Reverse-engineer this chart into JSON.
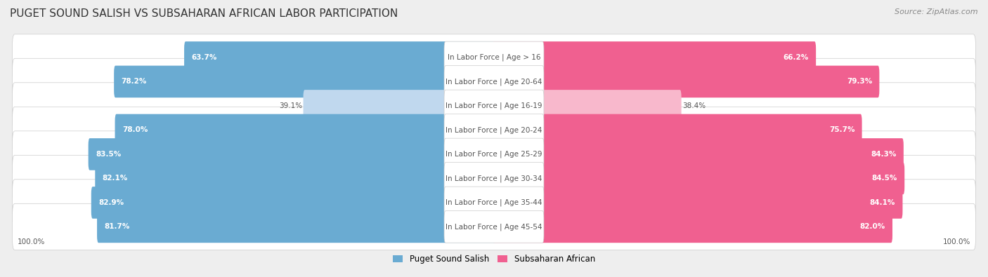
{
  "title": "PUGET SOUND SALISH VS SUBSAHARAN AFRICAN LABOR PARTICIPATION",
  "source": "Source: ZipAtlas.com",
  "categories": [
    "In Labor Force | Age > 16",
    "In Labor Force | Age 20-64",
    "In Labor Force | Age 16-19",
    "In Labor Force | Age 20-24",
    "In Labor Force | Age 25-29",
    "In Labor Force | Age 30-34",
    "In Labor Force | Age 35-44",
    "In Labor Force | Age 45-54"
  ],
  "left_values": [
    63.7,
    78.2,
    39.1,
    78.0,
    83.5,
    82.1,
    82.9,
    81.7
  ],
  "right_values": [
    66.2,
    79.3,
    38.4,
    75.7,
    84.3,
    84.5,
    84.1,
    82.0
  ],
  "left_color_full": "#6aabd2",
  "right_color_full": "#f06090",
  "left_color_light": "#c0d8ee",
  "right_color_light": "#f8b8cc",
  "left_label": "Puget Sound Salish",
  "right_label": "Subsaharan African",
  "bg_color": "#eeeeee",
  "row_bg_color": "#ffffff",
  "title_fontsize": 11,
  "label_fontsize": 7.5,
  "value_fontsize": 7.5,
  "legend_fontsize": 8.5,
  "source_fontsize": 8
}
